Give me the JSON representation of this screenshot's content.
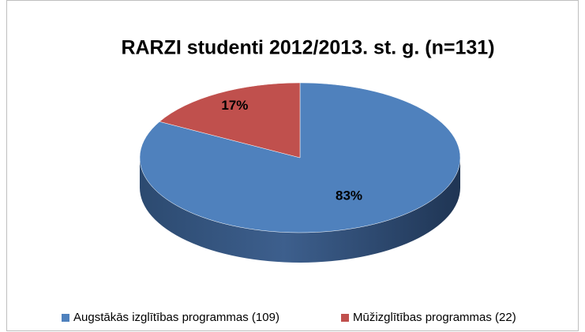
{
  "chart_data": {
    "type": "pie",
    "title": "RARZI studenti 2012/2013. st. g. (n=131)",
    "categories": [
      "Augstākās izglītības programmas (109)",
      "Mūžizglītības programmas (22)"
    ],
    "values": [
      83,
      17
    ],
    "value_labels": [
      "83%",
      "17%"
    ],
    "colors": [
      "#4f81bd",
      "#c0504d"
    ],
    "legend": "bottom"
  }
}
